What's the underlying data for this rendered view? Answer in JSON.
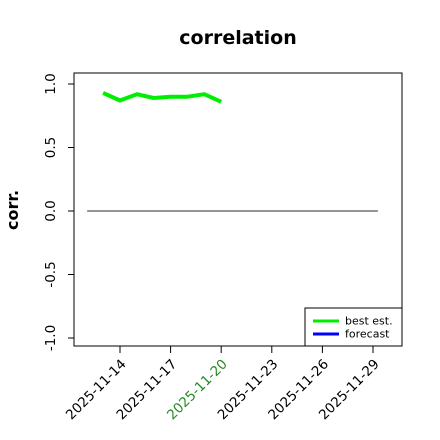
{
  "chart_data": {
    "type": "line",
    "title": "correlation",
    "xlabel": "",
    "ylabel": "corr.",
    "ylim": [
      -1.05,
      1.05
    ],
    "xlim": [
      "2025-11-12",
      "2025-11-30"
    ],
    "y_ticks": [
      {
        "value": -1.0,
        "label": "-1.0"
      },
      {
        "value": -0.5,
        "label": "-0.5"
      },
      {
        "value": 0.0,
        "label": "0.0"
      },
      {
        "value": 0.5,
        "label": "0.5"
      },
      {
        "value": 1.0,
        "label": "1.0"
      }
    ],
    "x_ticks": [
      {
        "date": "2025-11-14",
        "label": "2025-11-14",
        "color": "#000000"
      },
      {
        "date": "2025-11-17",
        "label": "2025-11-17",
        "color": "#000000"
      },
      {
        "date": "2025-11-20",
        "label": "2025-11-20",
        "color": "#228B22"
      },
      {
        "date": "2025-11-23",
        "label": "2025-11-23",
        "color": "#000000"
      },
      {
        "date": "2025-11-26",
        "label": "2025-11-26",
        "color": "#000000"
      },
      {
        "date": "2025-11-29",
        "label": "2025-11-29",
        "color": "#000000"
      }
    ],
    "zero_line": {
      "y": 0.0,
      "from": "2025-11-13",
      "to": "2025-11-30",
      "color": "#555555"
    },
    "series": [
      {
        "name": "best est.",
        "color": "#00ee00",
        "points": [
          {
            "x": "2025-11-13",
            "y": 0.93
          },
          {
            "x": "2025-11-14",
            "y": 0.87
          },
          {
            "x": "2025-11-15",
            "y": 0.92
          },
          {
            "x": "2025-11-16",
            "y": 0.89
          },
          {
            "x": "2025-11-17",
            "y": 0.9
          },
          {
            "x": "2025-11-18",
            "y": 0.9
          },
          {
            "x": "2025-11-19",
            "y": 0.92
          },
          {
            "x": "2025-11-20",
            "y": 0.86
          }
        ]
      },
      {
        "name": "forecast",
        "color": "#0000ff",
        "points": []
      }
    ],
    "legend_position": "bottom-right",
    "grid": false
  }
}
